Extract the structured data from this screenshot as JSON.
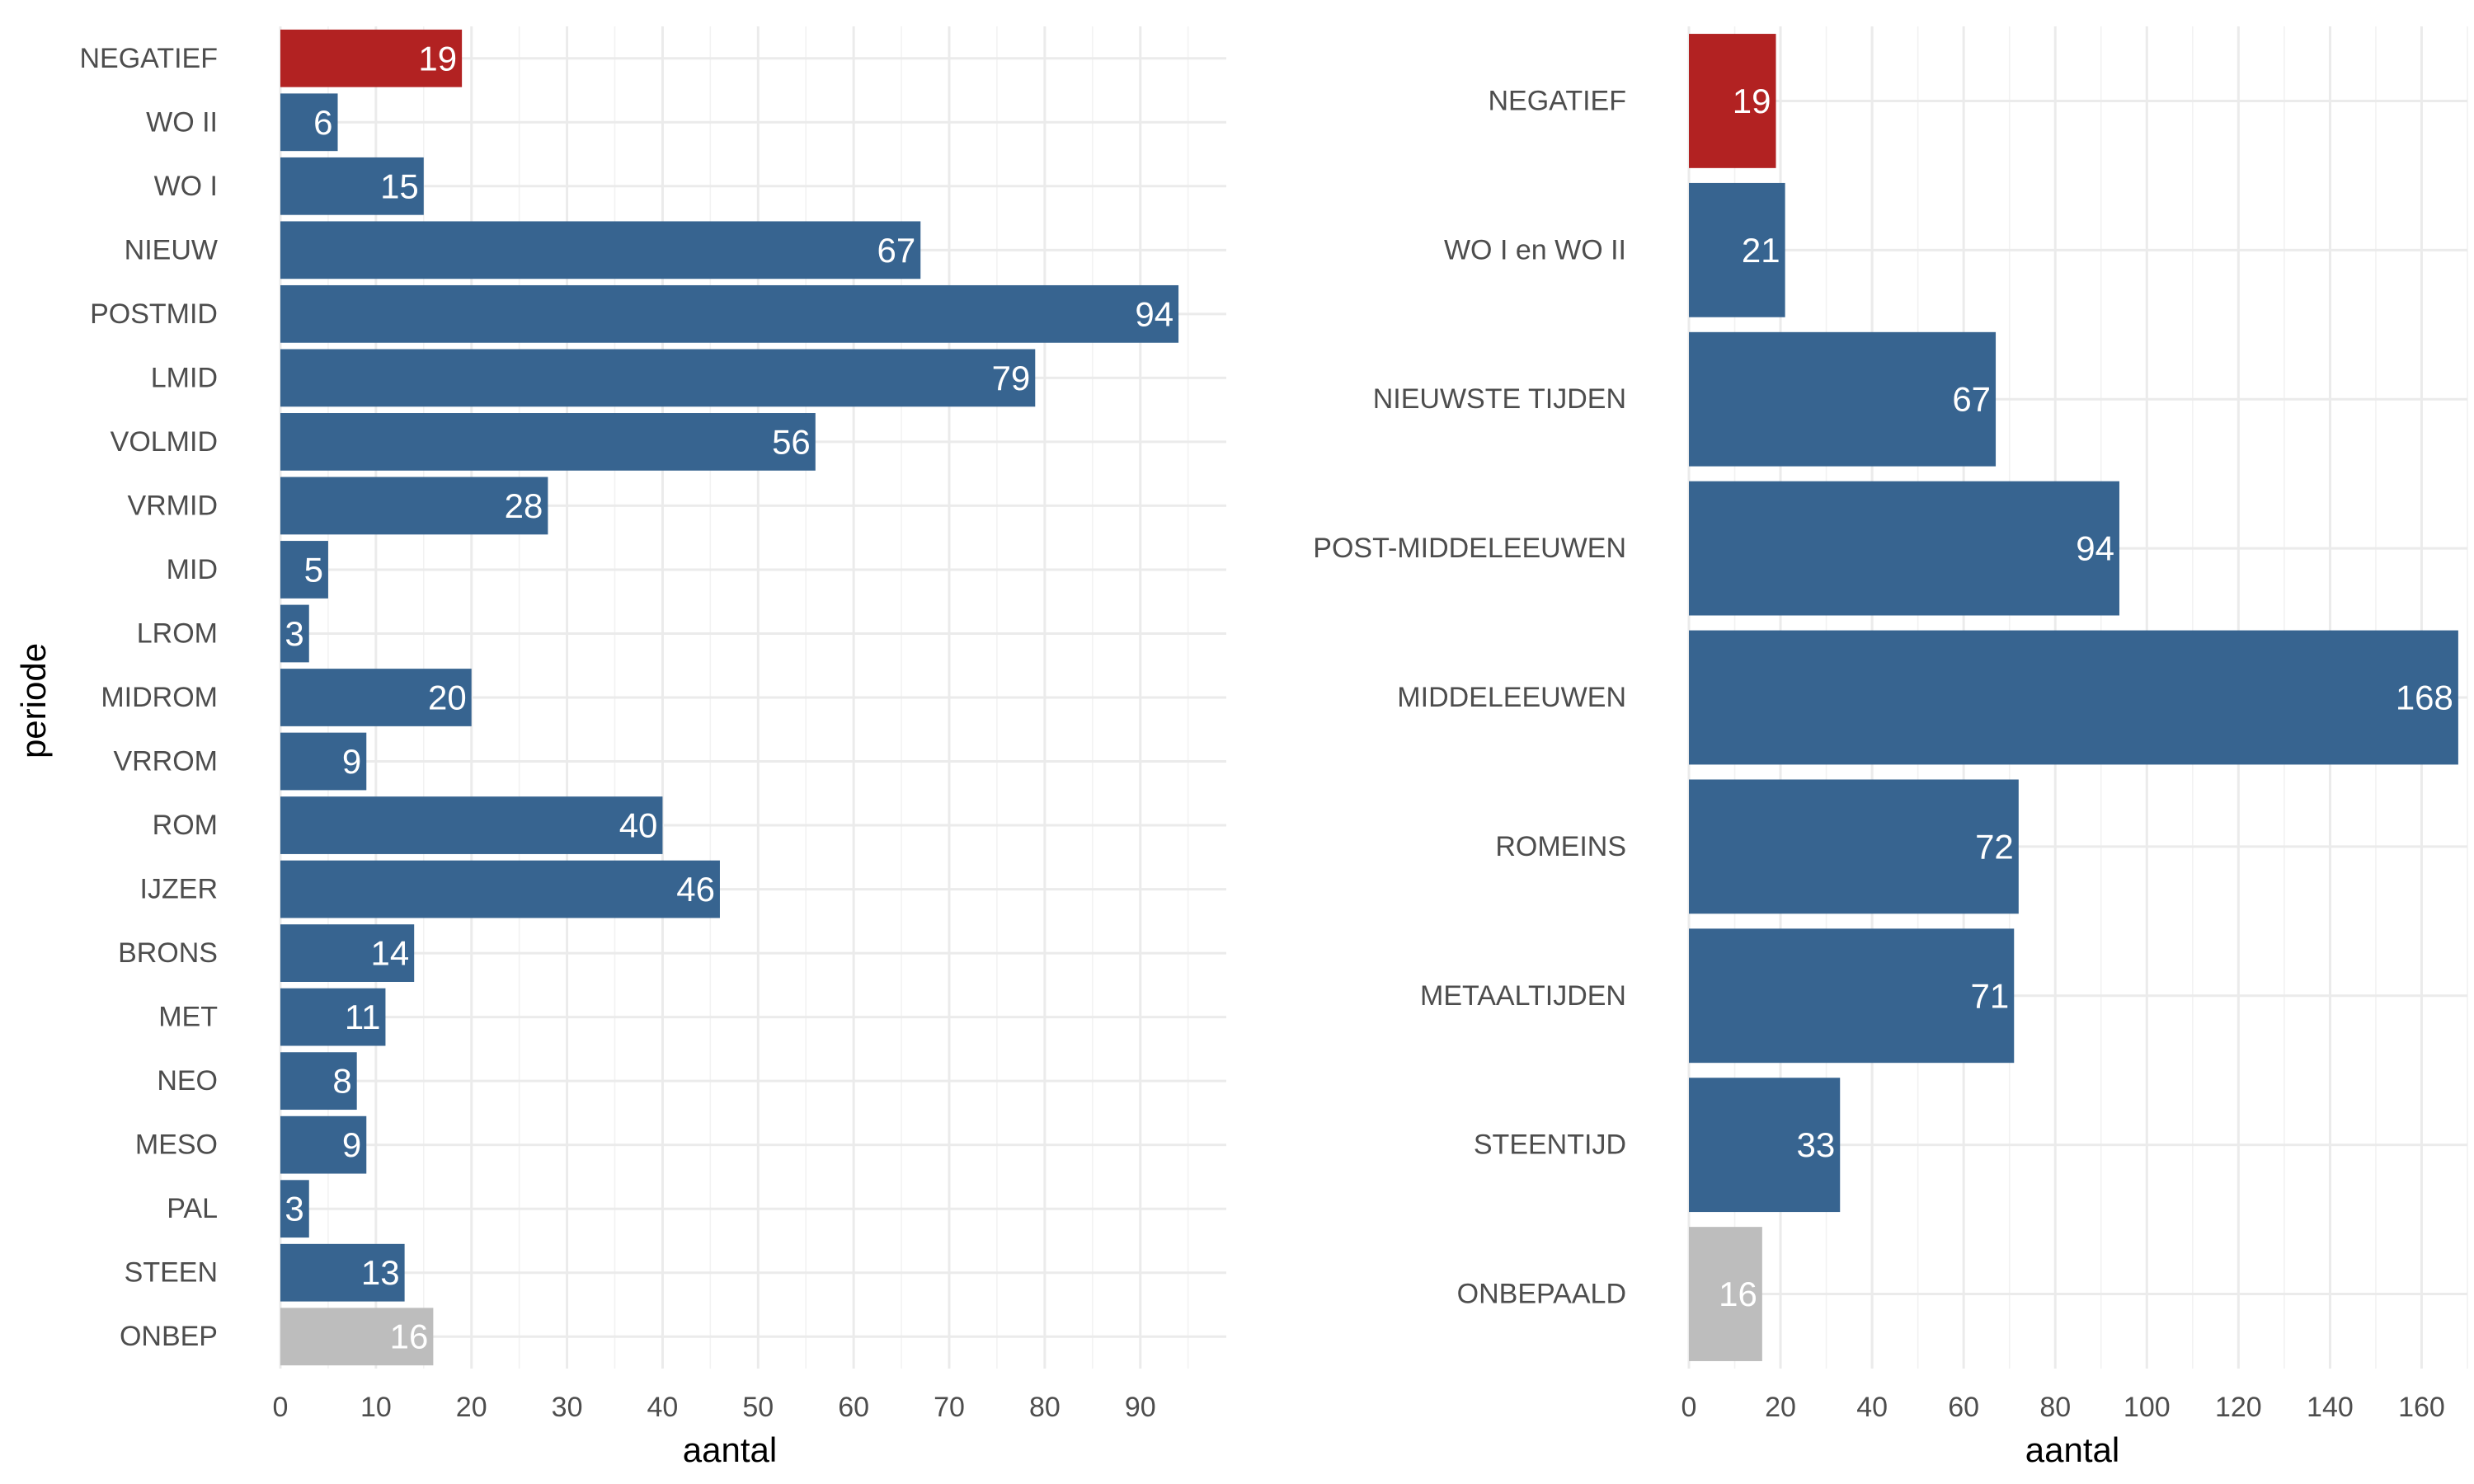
{
  "chart_data": [
    {
      "type": "bar",
      "orientation": "horizontal",
      "xlabel": "aantal",
      "ylabel": "periode",
      "xlim": [
        0,
        99
      ],
      "x_ticks": [
        0,
        10,
        20,
        30,
        40,
        50,
        60,
        70,
        80,
        90
      ],
      "grid": true,
      "categories": [
        "NEGATIEF",
        "WO II",
        "WO I",
        "NIEUW",
        "POSTMID",
        "LMID",
        "VOLMID",
        "VRMID",
        "MID",
        "LROM",
        "MIDROM",
        "VRROM",
        "ROM",
        "IJZER",
        "BRONS",
        "MET",
        "NEO",
        "MESO",
        "PAL",
        "STEEN",
        "ONBEP"
      ],
      "values": [
        19,
        6,
        15,
        67,
        94,
        79,
        56,
        28,
        5,
        3,
        20,
        9,
        40,
        46,
        14,
        11,
        8,
        9,
        3,
        13,
        16
      ],
      "colors": [
        "#b22222",
        "#376490",
        "#376490",
        "#376490",
        "#376490",
        "#376490",
        "#376490",
        "#376490",
        "#376490",
        "#376490",
        "#376490",
        "#376490",
        "#376490",
        "#376490",
        "#376490",
        "#376490",
        "#376490",
        "#376490",
        "#376490",
        "#376490",
        "#bdbdbd"
      ],
      "data_labels": true
    },
    {
      "type": "bar",
      "orientation": "horizontal",
      "xlabel": "aantal",
      "ylabel": "",
      "xlim": [
        0,
        170
      ],
      "x_ticks": [
        0,
        20,
        40,
        60,
        80,
        100,
        120,
        140,
        160
      ],
      "grid": true,
      "categories": [
        "NEGATIEF",
        "WO I en WO II",
        "NIEUWSTE TIJDEN",
        "POST-MIDDELEEUWEN",
        "MIDDELEEUWEN",
        "ROMEINS",
        "METAALTIJDEN",
        "STEENTIJD",
        "ONBEPAALD"
      ],
      "values": [
        19,
        21,
        67,
        94,
        168,
        72,
        71,
        33,
        16
      ],
      "colors": [
        "#b22222",
        "#376490",
        "#376490",
        "#376490",
        "#376490",
        "#376490",
        "#376490",
        "#376490",
        "#bdbdbd"
      ],
      "data_labels": true
    }
  ]
}
